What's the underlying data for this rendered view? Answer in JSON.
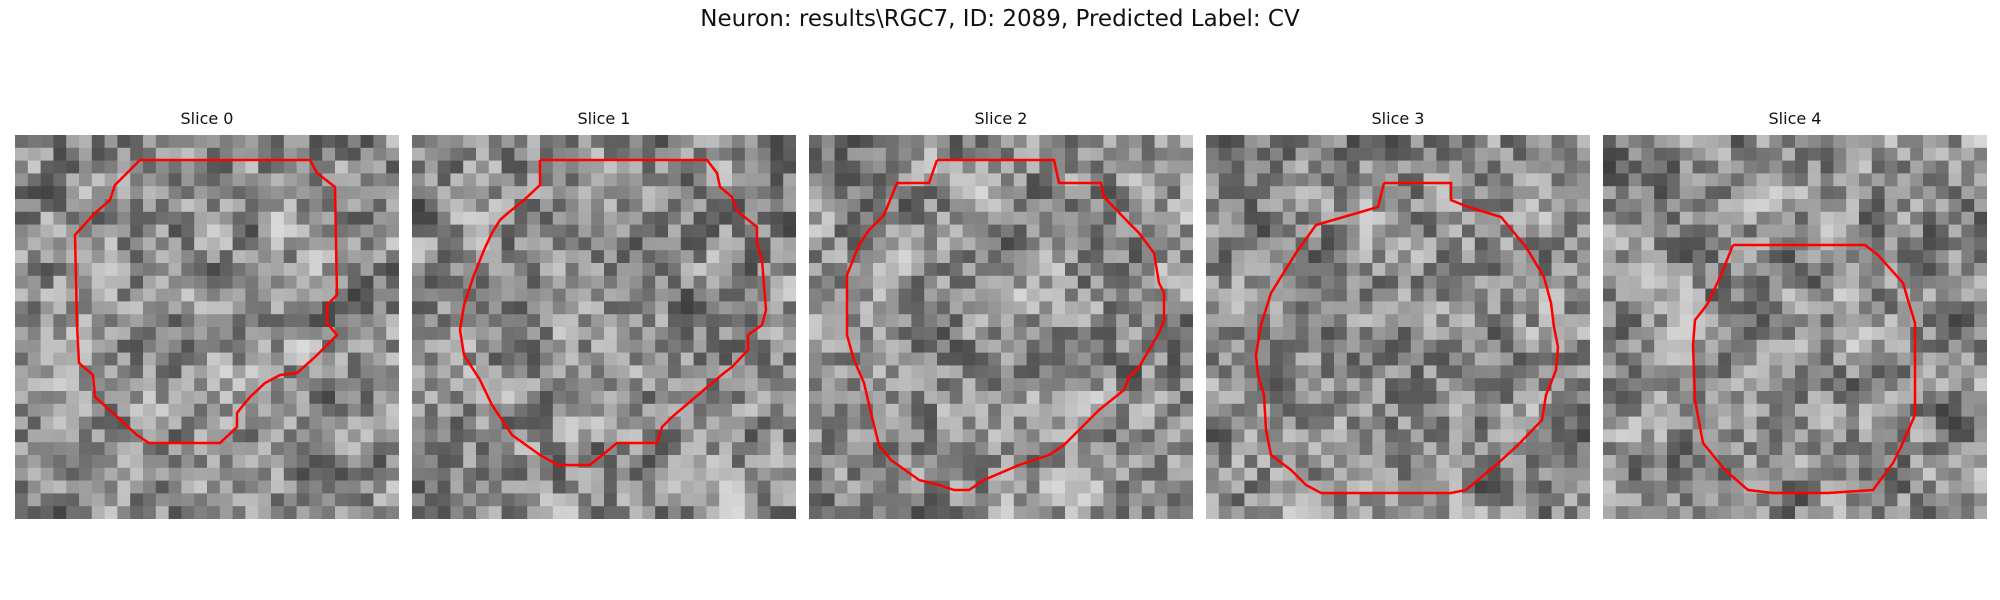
{
  "figure": {
    "title": "Neuron: results\\RGC7, ID: 2089, Predicted Label: CV",
    "contour_color": "#ff0000"
  },
  "panels": [
    {
      "title": "Slice 0",
      "image": "grayscale-microscopy-slice",
      "overlay": "red-neuron-contour"
    },
    {
      "title": "Slice 1",
      "image": "grayscale-microscopy-slice",
      "overlay": "red-neuron-contour"
    },
    {
      "title": "Slice 2",
      "image": "grayscale-microscopy-slice",
      "overlay": "red-neuron-contour"
    },
    {
      "title": "Slice 3",
      "image": "grayscale-microscopy-slice",
      "overlay": "red-neuron-contour"
    },
    {
      "title": "Slice 4",
      "image": "grayscale-microscopy-slice",
      "overlay": "red-neuron-contour"
    }
  ]
}
